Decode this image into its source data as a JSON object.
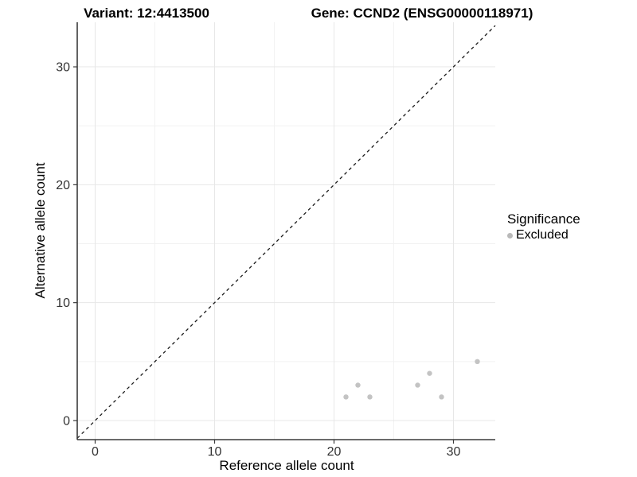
{
  "titles": {
    "variant": "Variant: 12:4413500",
    "gene": "Gene: CCND2 (ENSG00000118971)"
  },
  "axes": {
    "x_label": "Reference allele count",
    "y_label": "Alternative allele count"
  },
  "legend": {
    "title": "Significance",
    "items": [
      {
        "label": "Excluded",
        "color": "#b9b9b9"
      }
    ]
  },
  "chart_data": {
    "type": "scatter",
    "title": "Variant: 12:4413500   Gene: CCND2 (ENSG00000118971)",
    "xlabel": "Reference allele count",
    "ylabel": "Alternative allele count",
    "xlim": [
      -1.5,
      33.5
    ],
    "ylim": [
      -1.62,
      33.78
    ],
    "x_ticks": [
      0,
      10,
      20,
      30
    ],
    "y_ticks": [
      0,
      10,
      20,
      30
    ],
    "x_minor_ticks": [
      5,
      15,
      25
    ],
    "y_minor_ticks": [
      5,
      15,
      25
    ],
    "grid": true,
    "legend_position": "right",
    "series": [
      {
        "name": "Excluded",
        "color": "#c3c3c3",
        "points": [
          [
            21,
            2
          ],
          [
            22,
            3
          ],
          [
            23,
            2
          ],
          [
            27,
            3
          ],
          [
            28,
            4
          ],
          [
            29,
            2
          ],
          [
            32,
            5
          ]
        ]
      }
    ],
    "reference_line": {
      "type": "identity",
      "style": "dashed",
      "color": "#1a1a1a"
    }
  },
  "style": {
    "grid_major": "#e7e7e7",
    "grid_minor": "#f2f2f2",
    "axis_line": "#3a3a3a",
    "tick_text": "#333333",
    "background": "#ffffff"
  }
}
